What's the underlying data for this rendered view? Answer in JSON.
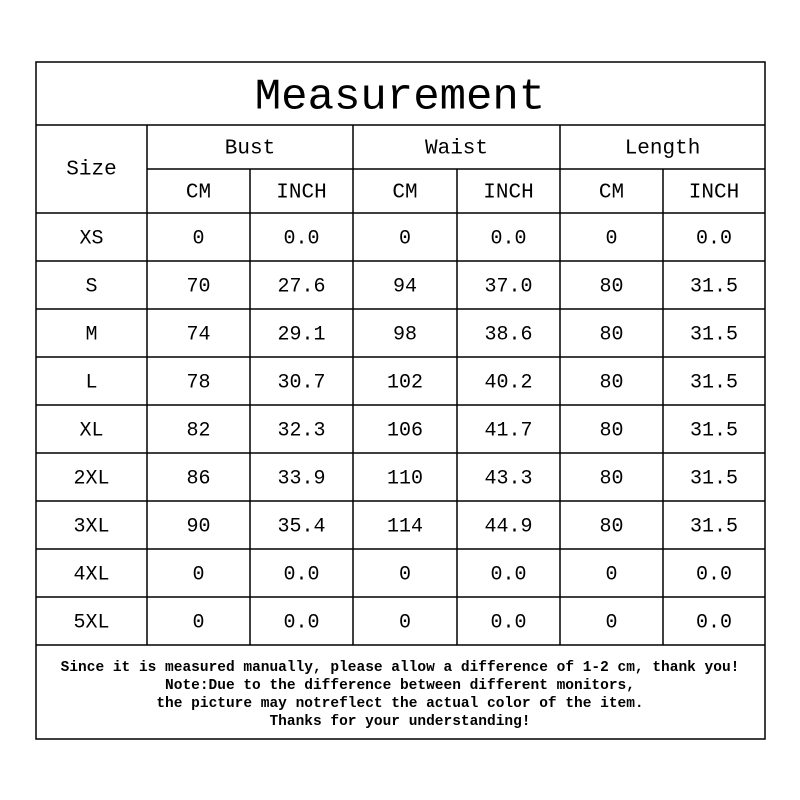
{
  "title": "Measurement",
  "header": {
    "size": "Size",
    "groups": [
      "Bust",
      "Waist",
      "Length"
    ],
    "units": [
      "CM",
      "INCH",
      "CM",
      "INCH",
      "CM",
      "INCH"
    ]
  },
  "table": {
    "rows": [
      [
        "XS",
        "0",
        "0.0",
        "0",
        "0.0",
        "0",
        "0.0"
      ],
      [
        "S",
        "70",
        "27.6",
        "94",
        "37.0",
        "80",
        "31.5"
      ],
      [
        "M",
        "74",
        "29.1",
        "98",
        "38.6",
        "80",
        "31.5"
      ],
      [
        "L",
        "78",
        "30.7",
        "102",
        "40.2",
        "80",
        "31.5"
      ],
      [
        "XL",
        "82",
        "32.3",
        "106",
        "41.7",
        "80",
        "31.5"
      ],
      [
        "2XL",
        "86",
        "33.9",
        "110",
        "43.3",
        "80",
        "31.5"
      ],
      [
        "3XL",
        "90",
        "35.4",
        "114",
        "44.9",
        "80",
        "31.5"
      ],
      [
        "4XL",
        "0",
        "0.0",
        "0",
        "0.0",
        "0",
        "0.0"
      ],
      [
        "5XL",
        "0",
        "0.0",
        "0",
        "0.0",
        "0",
        "0.0"
      ]
    ]
  },
  "footer": {
    "lines": [
      "Since it is measured manually, please allow a difference of 1-2 cm, thank you!",
      "Note:Due to the difference between different monitors,",
      "the picture may notreflect the actual color of the item.",
      "Thanks for your understanding!"
    ]
  }
}
